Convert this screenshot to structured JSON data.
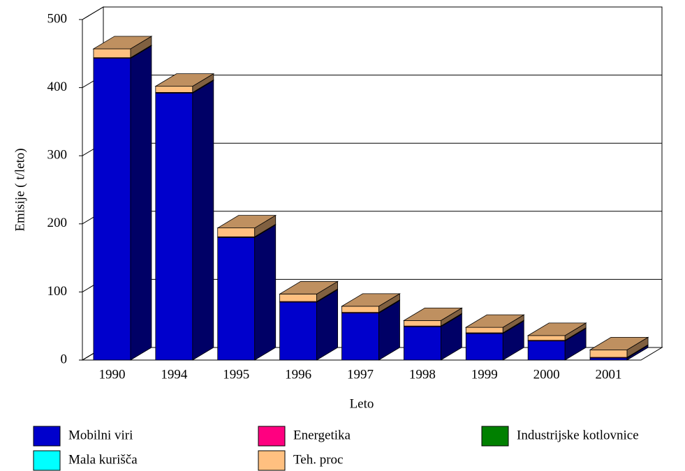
{
  "chart_data": {
    "type": "bar3d_stacked",
    "y_label": "Emisije ( t/leto)",
    "x_label": "Leto",
    "categories": [
      "1990",
      "1994",
      "1995",
      "1996",
      "1997",
      "1998",
      "1999",
      "2000",
      "2001"
    ],
    "series": [
      {
        "name": "Mobilni viri",
        "color": "#0000cc",
        "values": [
          443,
          392,
          180,
          85,
          69,
          49,
          39,
          28,
          3
        ]
      },
      {
        "name": "Energetika",
        "color": "#ff0080",
        "values": [
          1,
          1,
          1,
          1,
          1,
          1,
          1,
          1,
          1
        ]
      },
      {
        "name": "Industrijske kotlovnice",
        "color": "#008000",
        "values": [
          0,
          0,
          0,
          0,
          0,
          0,
          0,
          0,
          0
        ]
      },
      {
        "name": "Mala kurišča",
        "color": "#00ffff",
        "values": [
          0,
          0,
          0,
          0,
          0,
          0,
          0,
          0,
          0
        ]
      },
      {
        "name": "Teh. proc",
        "color": "#ffc080",
        "values": [
          13,
          9,
          13,
          11,
          9,
          8,
          8,
          7,
          11
        ]
      }
    ],
    "ylim": [
      0,
      500
    ],
    "yticks": [
      0,
      100,
      200,
      300,
      400,
      500
    ],
    "grid": true
  }
}
